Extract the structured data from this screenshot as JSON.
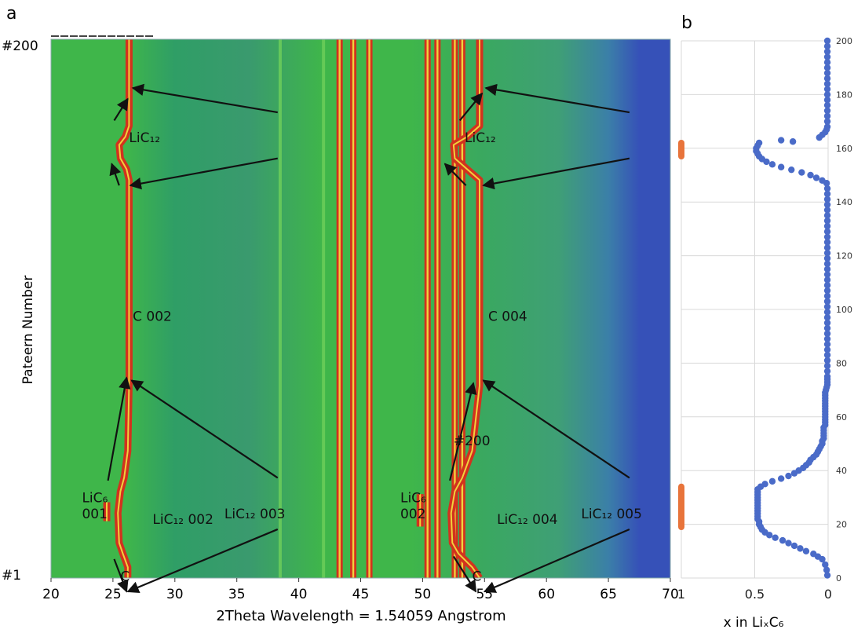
{
  "chart_data": [
    {
      "type": "heatmap",
      "panel_label": "a",
      "xlabel": "2Theta Wavelength = 1.54059 Angstrom",
      "ylabel": "Pateern Number",
      "xlim": [
        20,
        70
      ],
      "ylim": [
        1,
        200
      ],
      "x_ticks": [
        "20",
        "25",
        "30",
        "35",
        "40",
        "45",
        "50",
        "55",
        "60",
        "65",
        "70"
      ],
      "pattern_labels": {
        "top": "#200",
        "bottom": "#1"
      },
      "colors": {
        "background": "#3fb64a",
        "high": "#d2321e",
        "peak_core": "#f0d23c",
        "low": "#3651b8"
      },
      "peaks": [
        {
          "name": "graphite-002",
          "x": [
            [
              1,
              26.2
            ],
            [
              5,
              26.2
            ],
            [
              10,
              25.8
            ],
            [
              14,
              25.5
            ],
            [
              25,
              25.4
            ],
            [
              33,
              25.6
            ],
            [
              38,
              25.9
            ],
            [
              48,
              26.2
            ],
            [
              72,
              26.3
            ],
            [
              148,
              26.3
            ],
            [
              152,
              26.1
            ],
            [
              156,
              25.6
            ],
            [
              161,
              25.5
            ],
            [
              164,
              26.0
            ],
            [
              168,
              26.3
            ],
            [
              200,
              26.3
            ]
          ]
        },
        {
          "name": "graphite-004",
          "x": [
            [
              1,
              54.6
            ],
            [
              5,
              54.0
            ],
            [
              10,
              52.9
            ],
            [
              14,
              52.4
            ],
            [
              25,
              52.3
            ],
            [
              33,
              52.6
            ],
            [
              38,
              53.2
            ],
            [
              48,
              54.0
            ],
            [
              72,
              54.6
            ],
            [
              148,
              54.6
            ],
            [
              152,
              53.6
            ],
            [
              156,
              52.6
            ],
            [
              161,
              52.5
            ],
            [
              164,
              53.6
            ],
            [
              168,
              54.6
            ],
            [
              200,
              54.6
            ]
          ]
        },
        {
          "name": "LiC6-001",
          "x": [
            [
              22,
              24.5
            ],
            [
              29,
              24.5
            ]
          ]
        },
        {
          "name": "LiC6-002",
          "x": [
            [
              20,
              49.8
            ],
            [
              32,
              49.8
            ]
          ]
        }
      ],
      "vertical_bands": [
        {
          "x": 38.5,
          "intensity": "weak"
        },
        {
          "x": 42.0,
          "intensity": "weak"
        },
        {
          "x": 43.3,
          "intensity": "strong"
        },
        {
          "x": 44.4,
          "intensity": "strong"
        },
        {
          "x": 45.7,
          "intensity": "strong"
        },
        {
          "x": 50.4,
          "intensity": "strong"
        },
        {
          "x": 51.2,
          "intensity": "strong"
        },
        {
          "x": 52.6,
          "intensity": "strong"
        },
        {
          "x": 53.2,
          "intensity": "strong"
        }
      ],
      "annotations": [
        {
          "text": "LiC₁₂",
          "x": 26.3,
          "y": 162
        },
        {
          "text": "LiC₁₂",
          "x": 53.4,
          "y": 162
        },
        {
          "text": "C 002",
          "x": 26.6,
          "y": 96
        },
        {
          "text": "C 004",
          "x": 55.3,
          "y": 96
        },
        {
          "text": "#200",
          "x": 52.5,
          "y": 50
        },
        {
          "text": "LiC₆",
          "x": 22.5,
          "y": 29
        },
        {
          "text": "001",
          "x": 22.5,
          "y": 23
        },
        {
          "text": "LiC₁₂ 002",
          "x": 28.2,
          "y": 21
        },
        {
          "text": "LiC₁₂ 003",
          "x": 34.0,
          "y": 23
        },
        {
          "text": "LiC₆",
          "x": 48.2,
          "y": 29
        },
        {
          "text": "002",
          "x": 48.2,
          "y": 23
        },
        {
          "text": "LiC₁₂ 004",
          "x": 56.0,
          "y": 21
        },
        {
          "text": "LiC₁₂ 005",
          "x": 62.8,
          "y": 23
        },
        {
          "text": "C",
          "x": 25.6,
          "y": 0
        },
        {
          "text": "C",
          "x": 54.0,
          "y": 0
        }
      ],
      "arrows": [
        {
          "from": [
            38.3,
            173
          ],
          "to": [
            26.6,
            182
          ]
        },
        {
          "from": [
            38.3,
            156
          ],
          "to": [
            26.4,
            146
          ]
        },
        {
          "from": [
            25.5,
            146
          ],
          "to": [
            24.9,
            154
          ]
        },
        {
          "from": [
            25.1,
            170
          ],
          "to": [
            26.2,
            178
          ]
        },
        {
          "from": [
            66.7,
            173
          ],
          "to": [
            55.1,
            182
          ]
        },
        {
          "from": [
            66.7,
            156
          ],
          "to": [
            54.9,
            146
          ]
        },
        {
          "from": [
            53.5,
            146
          ],
          "to": [
            51.8,
            154
          ]
        },
        {
          "from": [
            53.0,
            170
          ],
          "to": [
            54.8,
            180
          ]
        },
        {
          "from": [
            38.3,
            38
          ],
          "to": [
            26.5,
            74
          ]
        },
        {
          "from": [
            66.7,
            38
          ],
          "to": [
            54.9,
            74
          ]
        },
        {
          "from": [
            24.6,
            37
          ],
          "to": [
            26.1,
            75
          ]
        },
        {
          "from": [
            52.2,
            37
          ],
          "to": [
            54.1,
            73
          ]
        },
        {
          "from": [
            38.3,
            19
          ],
          "to": [
            26.2,
            -4
          ]
        },
        {
          "from": [
            66.7,
            19
          ],
          "to": [
            55.0,
            -4
          ]
        },
        {
          "from": [
            25.1,
            8
          ],
          "to": [
            26.1,
            -4
          ]
        },
        {
          "from": [
            52.5,
            9
          ],
          "to": [
            54.3,
            -4
          ]
        }
      ]
    },
    {
      "type": "scatter",
      "panel_label": "b",
      "xlabel": "x in LiₓC₆",
      "xlim": [
        1,
        0
      ],
      "ylim": [
        0,
        200
      ],
      "x_ticks": [
        "1",
        "0.5",
        "0"
      ],
      "y_ticks": [
        "0",
        "20",
        "40",
        "60",
        "80",
        "100",
        "120",
        "140",
        "160",
        "180",
        "200"
      ],
      "colors": {
        "points": "#4a6bc8",
        "markers": "#e8743b",
        "grid": "#d9d9d9"
      },
      "series": [
        {
          "values": [
            [
              0.005,
              1
            ],
            [
              0.01,
              3
            ],
            [
              0.02,
              5
            ],
            [
              0.04,
              7
            ],
            [
              0.07,
              8
            ],
            [
              0.1,
              9
            ],
            [
              0.15,
              10
            ],
            [
              0.19,
              11
            ],
            [
              0.23,
              12
            ],
            [
              0.27,
              13
            ],
            [
              0.31,
              14
            ],
            [
              0.36,
              15
            ],
            [
              0.4,
              16
            ],
            [
              0.43,
              17
            ],
            [
              0.45,
              18
            ],
            [
              0.46,
              19
            ],
            [
              0.47,
              20
            ],
            [
              0.47,
              21
            ],
            [
              0.48,
              22
            ],
            [
              0.48,
              23
            ],
            [
              0.48,
              24
            ],
            [
              0.48,
              25
            ],
            [
              0.48,
              26
            ],
            [
              0.48,
              27
            ],
            [
              0.48,
              28
            ],
            [
              0.48,
              29
            ],
            [
              0.48,
              30
            ],
            [
              0.48,
              31
            ],
            [
              0.48,
              32
            ],
            [
              0.48,
              33
            ],
            [
              0.46,
              34
            ],
            [
              0.43,
              35
            ],
            [
              0.38,
              36
            ],
            [
              0.32,
              37
            ],
            [
              0.27,
              38
            ],
            [
              0.23,
              39
            ],
            [
              0.2,
              40
            ],
            [
              0.17,
              41
            ],
            [
              0.15,
              42
            ],
            [
              0.13,
              43
            ],
            [
              0.12,
              44
            ],
            [
              0.1,
              45
            ],
            [
              0.08,
              46
            ],
            [
              0.07,
              47
            ],
            [
              0.06,
              48
            ],
            [
              0.05,
              49
            ],
            [
              0.04,
              50
            ],
            [
              0.04,
              51
            ],
            [
              0.03,
              52
            ],
            [
              0.03,
              53
            ],
            [
              0.03,
              54
            ],
            [
              0.03,
              55
            ],
            [
              0.03,
              56
            ],
            [
              0.02,
              57
            ],
            [
              0.02,
              58
            ],
            [
              0.02,
              59
            ],
            [
              0.02,
              60
            ],
            [
              0.02,
              61
            ],
            [
              0.02,
              62
            ],
            [
              0.02,
              63
            ],
            [
              0.02,
              64
            ],
            [
              0.02,
              65
            ],
            [
              0.02,
              66
            ],
            [
              0.02,
              67
            ],
            [
              0.02,
              68
            ],
            [
              0.02,
              69
            ],
            [
              0.015,
              70
            ],
            [
              0.01,
              71
            ],
            [
              0.005,
              72
            ],
            [
              0.005,
              73
            ],
            [
              0.005,
              74
            ],
            [
              0.005,
              75
            ],
            [
              0.005,
              77
            ],
            [
              0.005,
              79
            ],
            [
              0.005,
              81
            ],
            [
              0.005,
              83
            ],
            [
              0.005,
              85
            ],
            [
              0.005,
              87
            ],
            [
              0.005,
              89
            ],
            [
              0.005,
              91
            ],
            [
              0.005,
              93
            ],
            [
              0.005,
              95
            ],
            [
              0.005,
              97
            ],
            [
              0.005,
              99
            ],
            [
              0.005,
              101
            ],
            [
              0.005,
              103
            ],
            [
              0.005,
              105
            ],
            [
              0.005,
              107
            ],
            [
              0.005,
              109
            ],
            [
              0.005,
              111
            ],
            [
              0.005,
              113
            ],
            [
              0.005,
              115
            ],
            [
              0.005,
              117
            ],
            [
              0.005,
              119
            ],
            [
              0.005,
              121
            ],
            [
              0.005,
              123
            ],
            [
              0.005,
              125
            ],
            [
              0.005,
              127
            ],
            [
              0.005,
              129
            ],
            [
              0.005,
              131
            ],
            [
              0.005,
              133
            ],
            [
              0.005,
              135
            ],
            [
              0.005,
              137
            ],
            [
              0.005,
              139
            ],
            [
              0.005,
              141
            ],
            [
              0.005,
              143
            ],
            [
              0.005,
              145
            ],
            [
              0.01,
              147
            ],
            [
              0.04,
              148
            ],
            [
              0.08,
              149
            ],
            [
              0.12,
              150
            ],
            [
              0.18,
              151
            ],
            [
              0.25,
              152
            ],
            [
              0.32,
              153
            ],
            [
              0.38,
              154
            ],
            [
              0.42,
              155
            ],
            [
              0.45,
              156
            ],
            [
              0.47,
              157
            ],
            [
              0.48,
              158
            ],
            [
              0.49,
              159
            ],
            [
              0.49,
              160
            ],
            [
              0.48,
              161
            ],
            [
              0.47,
              162
            ],
            [
              0.24,
              162.5
            ],
            [
              0.32,
              163
            ],
            [
              0.06,
              164
            ],
            [
              0.04,
              165
            ],
            [
              0.02,
              166
            ],
            [
              0.01,
              167
            ],
            [
              0.005,
              168
            ],
            [
              0.005,
              170
            ],
            [
              0.005,
              172
            ],
            [
              0.005,
              174
            ],
            [
              0.005,
              176
            ],
            [
              0.005,
              178
            ],
            [
              0.005,
              180
            ],
            [
              0.005,
              182
            ],
            [
              0.005,
              184
            ],
            [
              0.005,
              186
            ],
            [
              0.005,
              188
            ],
            [
              0.005,
              190
            ],
            [
              0.005,
              192
            ],
            [
              0.005,
              194
            ],
            [
              0.005,
              196
            ],
            [
              0.005,
              198
            ],
            [
              0.005,
              200
            ]
          ]
        }
      ],
      "markers": [
        {
          "x": 1,
          "y_range": [
            19,
            34
          ]
        },
        {
          "x": 1,
          "y_range": [
            157,
            162
          ]
        }
      ]
    }
  ]
}
